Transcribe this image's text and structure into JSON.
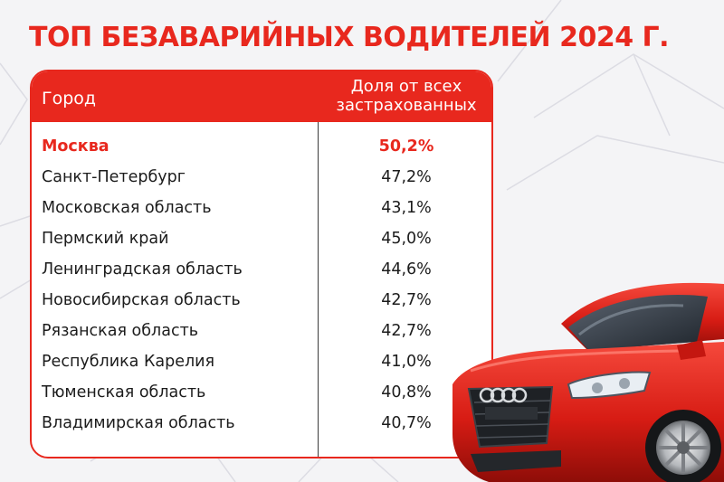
{
  "title": "ТОП БЕЗАВАРИЙНЫХ ВОДИТЕЛЕЙ 2024 Г.",
  "table": {
    "headers": {
      "city": "Город",
      "share": "Доля от всех застрахованных"
    },
    "rows": [
      {
        "city": "Москва",
        "share": "50,2%"
      },
      {
        "city": "Санкт-Петербург",
        "share": "47,2%"
      },
      {
        "city": "Московская область",
        "share": "43,1%"
      },
      {
        "city": "Пермский край",
        "share": "45,0%"
      },
      {
        "city": "Ленинградская область",
        "share": "44,6%"
      },
      {
        "city": "Новосибирская область",
        "share": "42,7%"
      },
      {
        "city": "Рязанская область",
        "share": "42,7%"
      },
      {
        "city": "Республика Карелия",
        "share": "41,0%"
      },
      {
        "city": "Тюменская область",
        "share": "40,8%"
      },
      {
        "city": "Владимирская область",
        "share": "40,7%"
      }
    ]
  },
  "colors": {
    "accent": "#e8281e",
    "background": "#f4f4f6",
    "text": "#1c1c1c"
  },
  "icons": {
    "car": "red-sports-car-image"
  }
}
